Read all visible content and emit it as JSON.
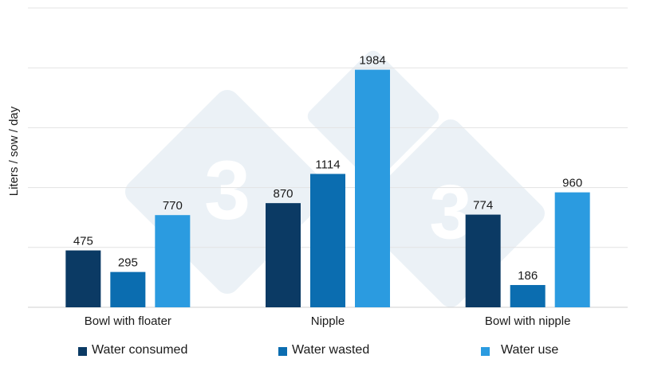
{
  "chart_data": {
    "type": "bar",
    "title": "",
    "xlabel": "",
    "ylabel": "Liters / sow / day",
    "ylim": [
      0,
      2500
    ],
    "grid": true,
    "legend_position": "bottom",
    "categories": [
      "Bowl with floater",
      "Nipple",
      "Bowl with nipple"
    ],
    "series": [
      {
        "name": "Water consumed",
        "color": "#0b3a64",
        "values": [
          475,
          870,
          774
        ]
      },
      {
        "name": "Water wasted",
        "color": "#0b6db0",
        "values": [
          295,
          1114,
          186
        ]
      },
      {
        "name": "Water use",
        "color": "#2b9be0",
        "values": [
          770,
          1984,
          960
        ]
      }
    ]
  },
  "watermark": {
    "text": "3",
    "color": "#b8cfe2"
  }
}
